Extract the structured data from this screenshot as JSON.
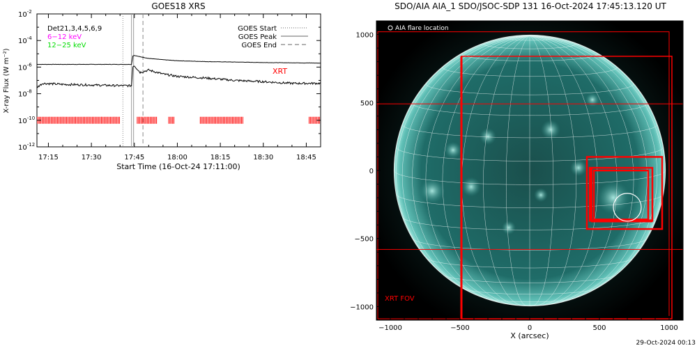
{
  "chart_data": [
    {
      "type": "line",
      "title": "GOES18 XRS",
      "xlabel": "Start Time (16-Oct-24 17:11:00)",
      "ylabel": "X-ray Flux (W m⁻²)",
      "y_scale": "log",
      "ylim": [
        1e-12,
        0.01
      ],
      "xlim": [
        "17:11",
        "18:50"
      ],
      "x_ticks": [
        "17:15",
        "17:30",
        "17:45",
        "18:00",
        "18:15",
        "18:30",
        "18:45"
      ],
      "y_ticks": [
        {
          "base": "10",
          "exp": "-2",
          "value": 0.01
        },
        {
          "base": "10",
          "exp": "-4",
          "value": 0.0001
        },
        {
          "base": "10",
          "exp": "-6",
          "value": 1e-06
        },
        {
          "base": "10",
          "exp": "-8",
          "value": 1e-08
        },
        {
          "base": "10",
          "exp": "-10",
          "value": 1e-10
        },
        {
          "base": "10",
          "exp": "-12",
          "value": 1e-12
        }
      ],
      "legend_left": [
        {
          "text": "Det21,3,4,5,6,9",
          "color": "#000000"
        },
        {
          "text": "6−12 keV",
          "color": "#ff00ff"
        },
        {
          "text": "12−25 keV",
          "color": "#00dd00"
        }
      ],
      "legend_right": [
        {
          "text": "GOES Start",
          "style": "dotted"
        },
        {
          "text": "GOES Peak",
          "style": "solid"
        },
        {
          "text": "GOES End",
          "style": "dashed"
        }
      ],
      "annotation": {
        "text": "XRT",
        "color": "#ff0000"
      },
      "goes_events": {
        "start": "17:41",
        "peak": "17:44",
        "end": "17:48"
      },
      "series": [
        {
          "color": "#000000",
          "time": [
            "17:11",
            "17:30",
            "17:44",
            "17:44.5",
            "17:45",
            "17:47",
            "17:50",
            "17:55",
            "18:00",
            "18:10",
            "18:20",
            "18:30",
            "18:40",
            "18:50"
          ],
          "flux": [
            1.6e-06,
            1.6e-06,
            1.6e-06,
            7e-06,
            7.5e-06,
            6e-06,
            4.5e-06,
            3.6e-06,
            3e-06,
            2.6e-06,
            2.4e-06,
            2.2e-06,
            2.1e-06,
            2e-06
          ]
        },
        {
          "color": "#000000",
          "time": [
            "17:11",
            "17:13",
            "17:20",
            "17:30",
            "17:40",
            "17:44",
            "17:44.5",
            "17:45",
            "17:47",
            "17:50",
            "17:55",
            "18:00",
            "18:10",
            "18:20",
            "18:30",
            "18:40",
            "18:50"
          ],
          "flux": [
            3e-08,
            6e-08,
            5e-08,
            4.5e-08,
            4e-08,
            4e-08,
            1.2e-06,
            1.3e-06,
            4e-07,
            6e-07,
            3e-07,
            2e-07,
            1.5e-07,
            1e-07,
            8e-08,
            6e-08,
            6e-08
          ]
        }
      ],
      "xrt_flux_level": 1e-10,
      "xrt_obs_intervals": [
        [
          "17:11",
          "17:40"
        ],
        [
          "17:46",
          "17:53"
        ],
        [
          "17:57",
          "17:59"
        ],
        [
          "18:08",
          "18:23"
        ],
        [
          "18:46",
          "18:50"
        ]
      ]
    },
    {
      "type": "image",
      "title": "SDO/AIA AIA_1 SDO/JSOC-SDP 131 16-Oct-2024 17:45:13.120 UT",
      "xlabel": "X (arcsec)",
      "ylabel": "",
      "xlim": [
        -1100,
        1100
      ],
      "ylim": [
        -1100,
        1100
      ],
      "x_ticks": [
        "−1000",
        "−500",
        "0",
        "500",
        "1000"
      ],
      "y_ticks": [
        "1000",
        "500",
        "0",
        "−500",
        "−1000"
      ],
      "legend": "AIA flare location",
      "xrt_label": "XRT FOV",
      "flare_location": {
        "x": 700,
        "y": -270,
        "radius": 100
      },
      "solar_radius_arcsec": 973,
      "grid_spacing_deg": 10,
      "xrt_fovs": [
        {
          "x": [
            -1090,
            1000
          ],
          "y": [
            -1090,
            1020
          ]
        },
        {
          "x": [
            -490,
            1020
          ],
          "y": [
            -1090,
            840
          ]
        },
        {
          "x": [
            -1100,
            1100
          ],
          "y": [
            -580,
            490
          ]
        },
        {
          "x": [
            410,
            950
          ],
          "y": [
            -430,
            100
          ]
        },
        {
          "x": [
            430,
            880
          ],
          "y": [
            -370,
            20
          ]
        },
        {
          "x": [
            460,
            850
          ],
          "y": [
            -360,
            0
          ]
        }
      ],
      "colors": {
        "disk": "#1c6f6b",
        "bright": "#bff5ee",
        "fov": "#ff0000",
        "grid": "#ffffff"
      }
    }
  ],
  "footer": {
    "timestamp": "29-Oct-2024 00:13"
  }
}
